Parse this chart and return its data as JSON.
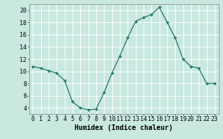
{
  "x": [
    0,
    1,
    2,
    3,
    4,
    5,
    6,
    7,
    8,
    9,
    10,
    11,
    12,
    13,
    14,
    15,
    16,
    17,
    18,
    19,
    20,
    21,
    22,
    23
  ],
  "y": [
    10.8,
    10.5,
    10.1,
    9.7,
    8.5,
    5.0,
    4.0,
    3.7,
    3.8,
    6.5,
    9.7,
    12.5,
    15.5,
    18.2,
    18.8,
    19.3,
    20.5,
    18.0,
    15.5,
    12.0,
    10.8,
    10.5,
    8.0,
    8.0
  ],
  "line_color": "#2e7d6e",
  "marker": "D",
  "marker_size": 2,
  "bg_color": "#c8e8e0",
  "grid_color": "#ffffff",
  "xlabel": "Humidex (Indice chaleur)",
  "xlim": [
    -0.5,
    23.5
  ],
  "ylim": [
    3,
    21
  ],
  "yticks": [
    4,
    6,
    8,
    10,
    12,
    14,
    16,
    18,
    20
  ],
  "xticks": [
    0,
    1,
    2,
    3,
    4,
    5,
    6,
    7,
    8,
    9,
    10,
    11,
    12,
    13,
    14,
    15,
    16,
    17,
    18,
    19,
    20,
    21,
    22,
    23
  ],
  "tick_labelsize": 6,
  "xlabel_fontsize": 7
}
